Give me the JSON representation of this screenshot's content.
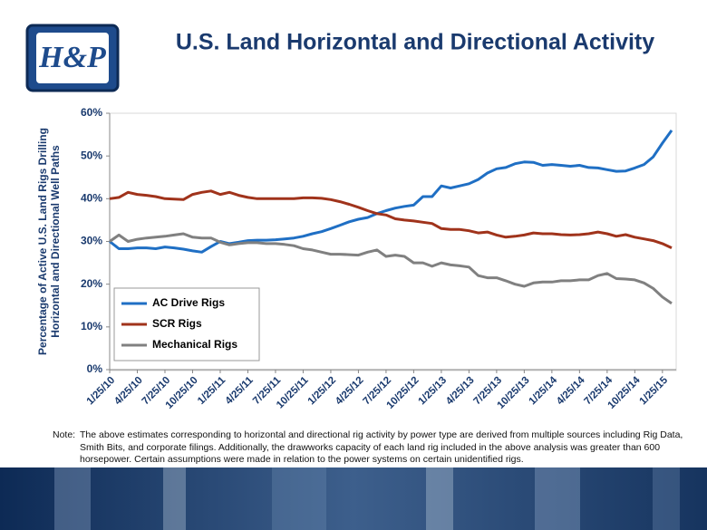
{
  "chart_data": {
    "type": "line",
    "title": "U.S. Land Horizontal and Directional Activity",
    "logo": "H&P",
    "ylabel": [
      "Percentage of Active U.S. Land Rigs Drilling",
      "Horizontal and Directional Well Paths"
    ],
    "note_label": "Note:",
    "note": "The above estimates corresponding to horizontal and directional rig activity by power type are derived from multiple sources including Rig Data, Smith Bits, and corporate filings.  Additionally, the drawworks capacity of each land rig included in the above analysis was greater than 600 horsepower.  Certain assumptions were made in relation to the power systems on certain unidentified rigs.",
    "categories": [
      "1/25/10",
      null,
      null,
      "4/25/10",
      null,
      null,
      "7/25/10",
      null,
      null,
      "10/25/10",
      null,
      null,
      "1/25/11",
      null,
      null,
      "4/25/11",
      null,
      null,
      "7/25/11",
      null,
      null,
      "10/25/11",
      null,
      null,
      "1/25/12",
      null,
      null,
      "4/25/12",
      null,
      null,
      "7/25/12",
      null,
      null,
      "10/25/12",
      null,
      null,
      "1/25/13",
      null,
      null,
      "4/25/13",
      null,
      null,
      "7/25/13",
      null,
      null,
      "10/25/13",
      null,
      null,
      "1/25/14",
      null,
      null,
      "4/25/14",
      null,
      null,
      "7/25/14",
      null,
      null,
      "10/25/14",
      null,
      null,
      "1/25/15",
      null
    ],
    "series": [
      {
        "name": "AC Drive Rigs",
        "color": "#1f6fc4",
        "values": [
          30,
          28.3,
          28.3,
          28.5,
          28.5,
          28.3,
          28.7,
          28.5,
          28.2,
          27.8,
          27.5,
          28.8,
          30,
          29.5,
          29.8,
          30.2,
          30.3,
          30.3,
          30.4,
          30.6,
          30.8,
          31.2,
          31.8,
          32.3,
          33,
          33.8,
          34.6,
          35.2,
          35.6,
          36.5,
          37.2,
          37.8,
          38.2,
          38.5,
          40.5,
          40.5,
          43,
          42.5,
          43,
          43.5,
          44.5,
          46,
          47,
          47.3,
          48.2,
          48.6,
          48.5,
          47.8,
          48,
          47.8,
          47.6,
          47.8,
          47.3,
          47.2,
          46.8,
          46.4,
          46.5,
          47.2,
          48,
          49.8,
          53,
          56
        ]
      },
      {
        "name": "SCR Rigs",
        "color": "#a0331b",
        "values": [
          40,
          40.3,
          41.5,
          41,
          40.8,
          40.5,
          40,
          39.9,
          39.8,
          41,
          41.5,
          41.8,
          41,
          41.5,
          40.8,
          40.3,
          40,
          40,
          40,
          40,
          40,
          40.2,
          40.2,
          40.1,
          39.8,
          39.3,
          38.7,
          38,
          37.2,
          36.5,
          36.2,
          35.3,
          35,
          34.8,
          34.5,
          34.2,
          33,
          32.8,
          32.8,
          32.5,
          32,
          32.2,
          31.5,
          31,
          31.2,
          31.5,
          32,
          31.8,
          31.8,
          31.6,
          31.5,
          31.6,
          31.8,
          32.2,
          31.8,
          31.2,
          31.6,
          31,
          30.6,
          30.2,
          29.5,
          28.5
        ]
      },
      {
        "name": "Mechanical Rigs",
        "color": "#808080",
        "values": [
          30,
          31.5,
          30,
          30.5,
          30.8,
          31,
          31.2,
          31.5,
          31.8,
          31,
          30.8,
          30.8,
          29.8,
          29.2,
          29.5,
          29.7,
          29.7,
          29.5,
          29.5,
          29.3,
          29,
          28.3,
          28,
          27.5,
          27,
          27,
          26.9,
          26.8,
          27.5,
          28,
          26.5,
          26.8,
          26.5,
          25,
          25,
          24.2,
          25,
          24.5,
          24.3,
          24,
          22,
          21.5,
          21.5,
          20.8,
          20,
          19.5,
          20.3,
          20.5,
          20.5,
          20.8,
          20.8,
          21,
          21,
          22,
          22.5,
          21.3,
          21.2,
          21,
          20.3,
          19,
          17,
          15.5
        ]
      }
    ],
    "ylim": [
      0,
      60
    ],
    "yticks": [
      {
        "value": 0,
        "label": "0%"
      },
      {
        "value": 10,
        "label": "10%"
      },
      {
        "value": 20,
        "label": "20%"
      },
      {
        "value": 30,
        "label": "30%"
      },
      {
        "value": 40,
        "label": "40%"
      },
      {
        "value": 50,
        "label": "50%"
      },
      {
        "value": 60,
        "label": "60%"
      }
    ],
    "grid": false,
    "legend": "lower left"
  }
}
